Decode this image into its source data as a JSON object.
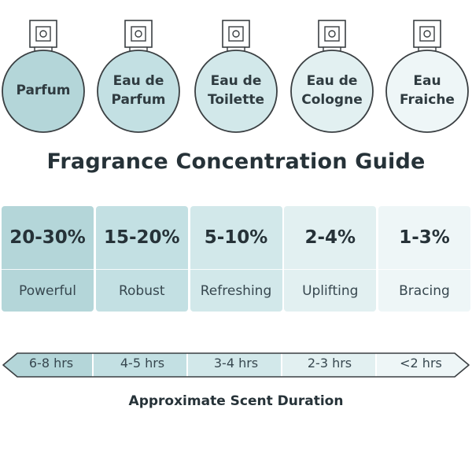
{
  "bottles": [
    {
      "label": "Parfum",
      "fill": "#b4d6d9"
    },
    {
      "label": "Eau de\nParfum",
      "fill": "#c3e0e3"
    },
    {
      "label": "Eau de\nToilette",
      "fill": "#d2e8ea"
    },
    {
      "label": "Eau de\nCologne",
      "fill": "#e2f0f1"
    },
    {
      "label": "Eau\nFraiche",
      "fill": "#eef6f7"
    }
  ],
  "title": "Fragrance Concentration Guide",
  "concentrations": [
    {
      "percent": "20-30%",
      "strength": "Powerful",
      "fill": "#b4d6d9"
    },
    {
      "percent": "15-20%",
      "strength": "Robust",
      "fill": "#c3e0e3"
    },
    {
      "percent": "5-10%",
      "strength": "Refreshing",
      "fill": "#d2e8ea"
    },
    {
      "percent": "2-4%",
      "strength": "Uplifting",
      "fill": "#e2f0f1"
    },
    {
      "percent": "1-3%",
      "strength": "Bracing",
      "fill": "#eef6f7"
    }
  ],
  "durations": [
    "6-8 hrs",
    "4-5 hrs",
    "3-4 hrs",
    "2-3 hrs",
    "<2 hrs"
  ],
  "duration_caption": "Approximate Scent Duration",
  "colors": {
    "outline": "#3a3f42",
    "text": "#263238"
  }
}
